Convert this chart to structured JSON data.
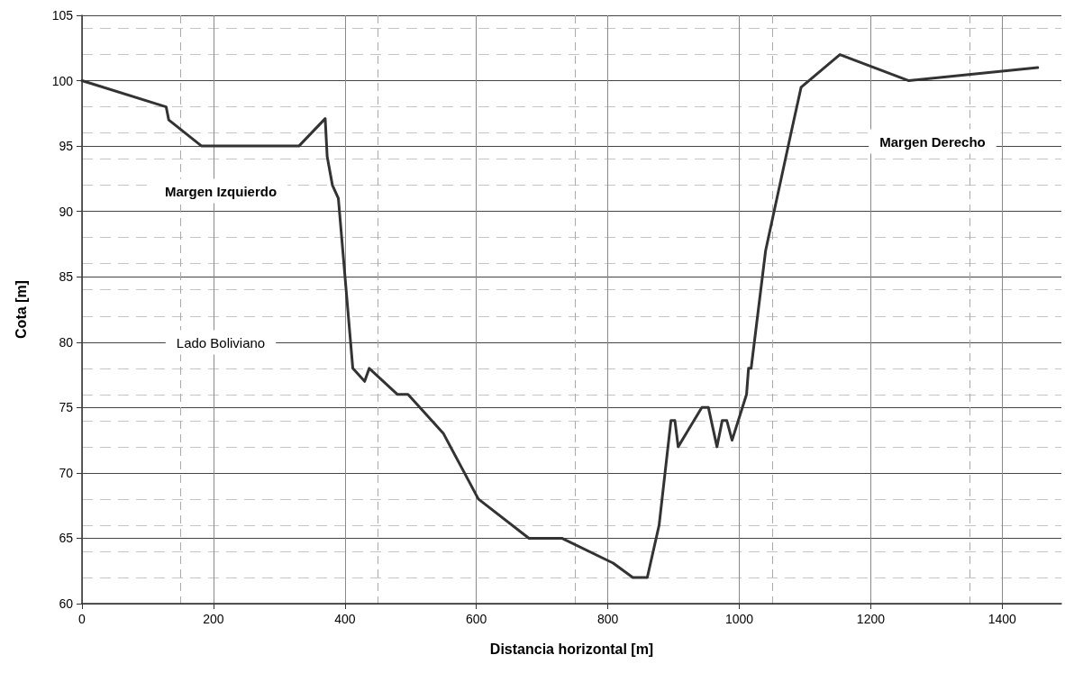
{
  "chart_data": {
    "type": "line",
    "xlabel": "Distancia horizontal [m]",
    "ylabel": "Cota [m]",
    "annotations": [
      "Margen Izquierdo",
      "Lado Boliviano",
      "Margen Derecho"
    ],
    "x": [
      0,
      128,
      132,
      182,
      330,
      370,
      373,
      381,
      390,
      412,
      430,
      437,
      480,
      496,
      550,
      603,
      680,
      730,
      808,
      838,
      860,
      878,
      896,
      902,
      907,
      943,
      953,
      966,
      974,
      981,
      989,
      1011,
      1014,
      1018,
      1040,
      1080,
      1094,
      1153,
      1258,
      1454
    ],
    "series": [
      {
        "color": "#333333",
        "values": [
          100,
          98,
          97,
          95,
          95,
          97.1,
          94.2,
          92,
          91,
          78,
          77,
          78,
          76,
          76,
          73,
          68,
          65,
          65,
          63.1,
          62,
          62,
          66,
          74,
          74,
          72,
          75,
          75,
          72,
          74,
          74,
          72.5,
          76,
          78,
          78,
          87,
          96.3,
          99.5,
          102,
          100,
          101
        ]
      }
    ],
    "xlim": [
      0,
      1490
    ],
    "xticks": [
      0,
      200,
      400,
      600,
      800,
      1000,
      1200,
      1400
    ],
    "ylim": [
      60,
      105
    ],
    "yticks": [
      60,
      65,
      70,
      75,
      80,
      85,
      90,
      95,
      100,
      105
    ],
    "grid": true,
    "marker": "none",
    "line_style": "solid"
  }
}
